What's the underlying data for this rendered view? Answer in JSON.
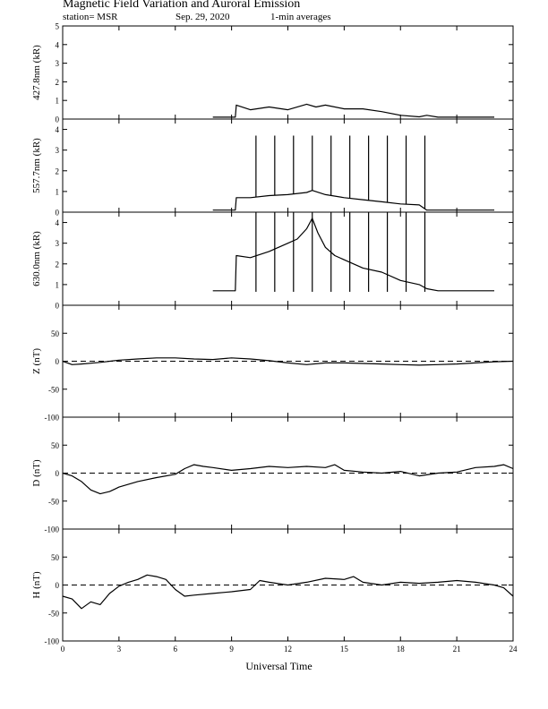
{
  "header": {
    "title": "Magnetic Field Variation and Auroral Emission",
    "station": "station= MSR",
    "date": "Sep. 29, 2020",
    "averaging": "1-min averages"
  },
  "chart_data": [
    {
      "type": "line",
      "panel": "427.8nm",
      "ylabel": "427.8nm (kR)",
      "ylim": [
        0,
        5
      ],
      "yticks": [
        0,
        1,
        2,
        3,
        4,
        5
      ],
      "xlim": [
        0,
        24
      ],
      "dashed_zero": false,
      "series": [
        {
          "x": [
            8,
            9.2,
            9.25,
            10,
            11,
            12,
            13,
            13.5,
            14,
            15,
            16,
            17,
            18,
            19,
            19.4,
            20,
            21,
            22,
            23
          ],
          "y": [
            0.1,
            0.1,
            0.75,
            0.5,
            0.65,
            0.5,
            0.8,
            0.65,
            0.75,
            0.55,
            0.55,
            0.4,
            0.2,
            0.12,
            0.2,
            0.1,
            0.1,
            0.1,
            0.1
          ]
        }
      ]
    },
    {
      "type": "line",
      "panel": "557.7nm",
      "ylabel": "557.7nm (kR)",
      "ylim": [
        0,
        4.5
      ],
      "yticks": [
        0,
        1,
        2,
        3,
        4
      ],
      "xlim": [
        0,
        24
      ],
      "dashed_zero": false,
      "series": [
        {
          "x": [
            8,
            9.2,
            9.25,
            10,
            11,
            12,
            13,
            13.3,
            14,
            15,
            16,
            17,
            18,
            19,
            19.4,
            20,
            21,
            22,
            23
          ],
          "y": [
            0.1,
            0.1,
            0.7,
            0.7,
            0.8,
            0.85,
            0.95,
            1.05,
            0.85,
            0.7,
            0.6,
            0.5,
            0.4,
            0.35,
            0.1,
            0.1,
            0.1,
            0.1,
            0.1
          ]
        }
      ],
      "spikes": {
        "x": [
          10.3,
          11.3,
          12.3,
          13.3,
          14.3,
          15.3,
          16.3,
          17.3,
          18.3,
          19.3
        ],
        "y": 3.7
      }
    },
    {
      "type": "line",
      "panel": "630.0nm",
      "ylabel": "630.0nm (kR)",
      "ylim": [
        0,
        4.5
      ],
      "yticks": [
        0,
        1,
        2,
        3,
        4
      ],
      "xlim": [
        0,
        24
      ],
      "dashed_zero": false,
      "series": [
        {
          "x": [
            8,
            9.2,
            9.25,
            10,
            11,
            12,
            12.5,
            13,
            13.3,
            13.6,
            14,
            14.5,
            15,
            16,
            17,
            18,
            19,
            19.4,
            20,
            21,
            22,
            23
          ],
          "y": [
            0.7,
            0.7,
            2.4,
            2.3,
            2.6,
            3.0,
            3.2,
            3.7,
            4.2,
            3.5,
            2.8,
            2.4,
            2.2,
            1.8,
            1.6,
            1.2,
            1.0,
            0.8,
            0.7,
            0.7,
            0.7,
            0.7
          ]
        }
      ],
      "spikes": {
        "x": [
          10.3,
          11.3,
          12.3,
          13.3,
          14.3,
          15.3,
          16.3,
          17.3,
          18.3,
          19.3
        ],
        "y": 4.5,
        "y0": 0.65
      }
    },
    {
      "type": "line",
      "panel": "Z",
      "ylabel": "Z (nT)",
      "ylim": [
        -100,
        100
      ],
      "yticks": [
        -100,
        -50,
        0,
        50
      ],
      "xlim": [
        0,
        24
      ],
      "dashed_zero": true,
      "series": [
        {
          "x": [
            0,
            0.5,
            1,
            2,
            3,
            4,
            5,
            6,
            7,
            8,
            9,
            10,
            11,
            12,
            13,
            14,
            15,
            16,
            17,
            18,
            19,
            20,
            21,
            22,
            23,
            24
          ],
          "y": [
            0,
            -6,
            -5,
            -2,
            2,
            4,
            6,
            6,
            4,
            3,
            6,
            4,
            1,
            -3,
            -6,
            -3,
            -3,
            -4,
            -5,
            -6,
            -7,
            -6,
            -5,
            -3,
            -1,
            0
          ]
        }
      ]
    },
    {
      "type": "line",
      "panel": "D",
      "ylabel": "D (nT)",
      "ylim": [
        -100,
        100
      ],
      "yticks": [
        -100,
        -50,
        0,
        50
      ],
      "xlim": [
        0,
        24
      ],
      "dashed_zero": true,
      "series": [
        {
          "x": [
            0,
            0.5,
            1,
            1.5,
            2,
            2.5,
            3,
            4,
            5,
            6,
            6.5,
            7,
            7.5,
            8,
            9,
            10,
            11,
            12,
            13,
            14,
            14.5,
            15,
            16,
            17,
            18,
            19,
            20,
            21,
            22,
            23,
            23.5,
            24
          ],
          "y": [
            0,
            -5,
            -15,
            -30,
            -37,
            -33,
            -25,
            -15,
            -8,
            -2,
            8,
            15,
            12,
            10,
            5,
            8,
            12,
            10,
            12,
            10,
            15,
            5,
            2,
            0,
            3,
            -5,
            0,
            2,
            10,
            12,
            15,
            8
          ]
        }
      ]
    },
    {
      "type": "line",
      "panel": "H",
      "ylabel": "H (nT)",
      "ylim": [
        -100,
        100
      ],
      "yticks": [
        -100,
        -50,
        0,
        50
      ],
      "xlim": [
        0,
        24
      ],
      "xticks": [
        0,
        3,
        6,
        9,
        12,
        15,
        18,
        21,
        24
      ],
      "xlabel": "Universal Time",
      "dashed_zero": true,
      "series": [
        {
          "x": [
            0,
            0.5,
            1,
            1.5,
            2,
            2.5,
            3,
            3.5,
            4,
            4.5,
            5,
            5.5,
            6,
            6.5,
            7,
            8,
            9,
            10,
            10.5,
            11,
            12,
            13,
            14,
            15,
            15.5,
            16,
            17,
            18,
            19,
            20,
            21,
            22,
            23,
            23.5,
            24
          ],
          "y": [
            -20,
            -25,
            -42,
            -30,
            -35,
            -15,
            -2,
            5,
            10,
            18,
            15,
            10,
            -8,
            -20,
            -18,
            -15,
            -12,
            -8,
            8,
            5,
            0,
            5,
            12,
            10,
            15,
            5,
            0,
            5,
            3,
            5,
            8,
            5,
            0,
            -5,
            -20
          ]
        }
      ]
    }
  ]
}
